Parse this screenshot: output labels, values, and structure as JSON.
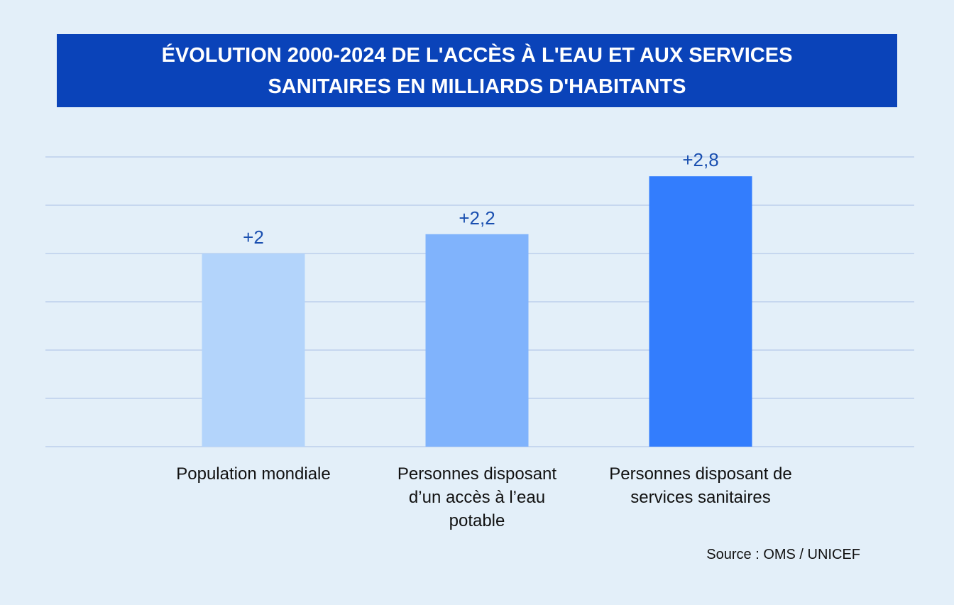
{
  "chart_data": {
    "type": "bar",
    "title": "ÉVOLUTION 2000-2024 DE L'ACCÈS À L'EAU ET AUX SERVICES SANITAIRES EN MILLIARDS D'HABITANTS",
    "categories": [
      "Population mondiale",
      "Personnes disposant d’un accès à l’eau potable",
      "Personnes disposant de services sanitaires"
    ],
    "values": [
      2,
      2.2,
      2.8
    ],
    "value_labels": [
      "+2",
      "+2,2",
      "+2,8"
    ],
    "colors": [
      "#b3d4fb",
      "#80b3fc",
      "#337dfd"
    ],
    "ylim": [
      0,
      3
    ],
    "yticks": [
      0,
      0.5,
      1,
      1.5,
      2,
      2.5,
      3
    ],
    "grid": true,
    "source": "Source : OMS / UNICEF"
  }
}
